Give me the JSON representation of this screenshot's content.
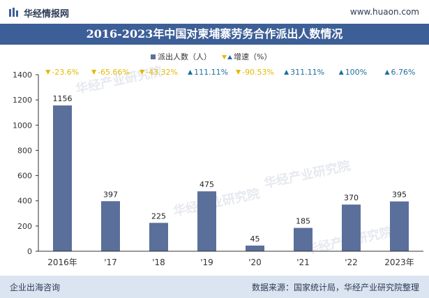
{
  "header": {
    "brand": "华经情报网",
    "site": "www.huaon.com"
  },
  "footer": {
    "left": "企业出海咨询",
    "right": "数据来源：国家统计局，华经产业研究院整理"
  },
  "watermark": "华经产业研究院",
  "colors": {
    "bar": "#5a6f9a",
    "title_bg": "#3d5f97",
    "down": "#e6b800",
    "up": "#1f6f9e"
  },
  "chart_data": {
    "type": "bar",
    "title": "2016-2023年中国对柬埔寨劳务合作派出人数情况",
    "categories": [
      "2016年",
      "'17",
      "'18",
      "'19",
      "'20",
      "'21",
      "'22",
      "2023年"
    ],
    "series": [
      {
        "name": "派出人数（人）",
        "values": [
          1156,
          397,
          225,
          475,
          45,
          185,
          370,
          395
        ]
      }
    ],
    "growth": {
      "name": "增速（%）",
      "labels": [
        "-23.6%",
        "-65.66%",
        "-43.32%",
        "111.11%",
        "-90.53%",
        "311.11%",
        "100%",
        "6.76%"
      ],
      "directions": [
        "down",
        "down",
        "down",
        "up",
        "down",
        "up",
        "up",
        "up"
      ]
    },
    "ylim": [
      0,
      1400
    ],
    "yticks": [
      0,
      200,
      400,
      600,
      800,
      1000,
      1200,
      1400
    ],
    "legend": "top-center"
  }
}
